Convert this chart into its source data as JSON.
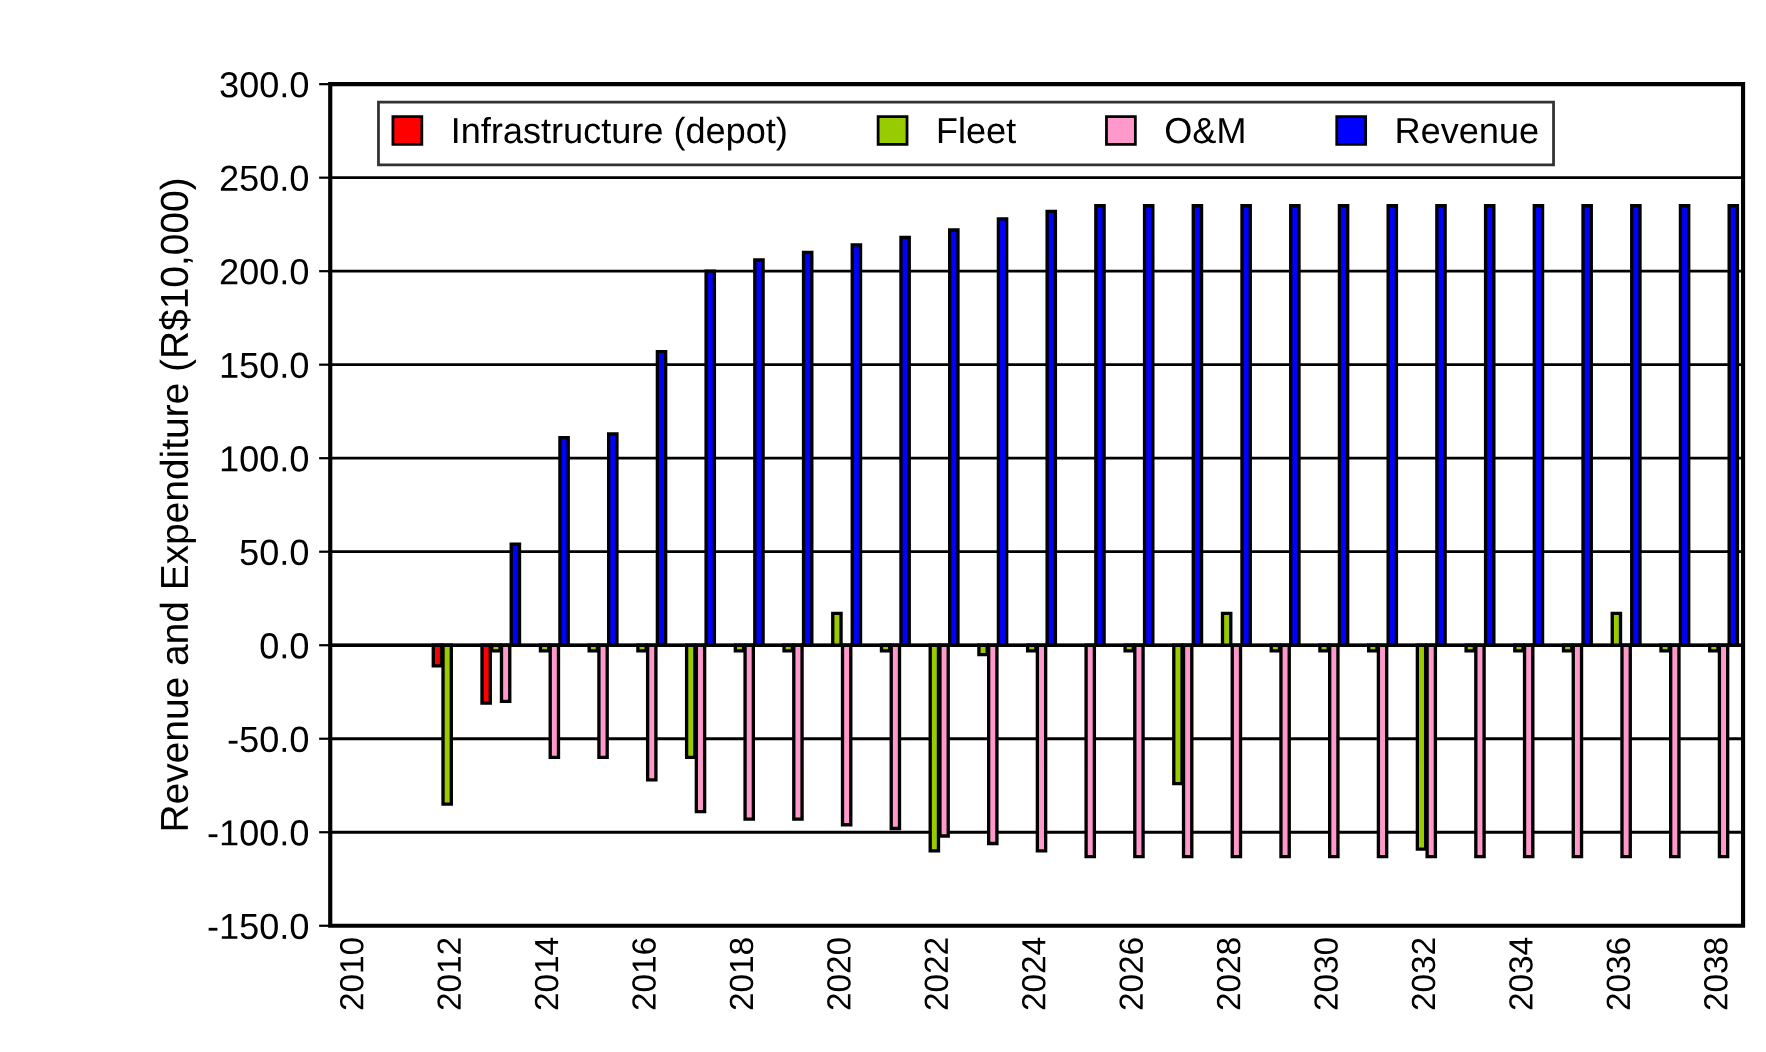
{
  "chart_data": {
    "type": "bar",
    "ylabel": "Revenue and Expenditure (R$10,000)",
    "categories": [
      "2010",
      null,
      "2012",
      null,
      "2014",
      null,
      "2016",
      null,
      "2018",
      null,
      "2020",
      null,
      "2022",
      null,
      "2024",
      null,
      "2026",
      null,
      "2028",
      null,
      "2030",
      null,
      "2032",
      null,
      "2034",
      null,
      "2036",
      null,
      "2038"
    ],
    "series": [
      {
        "name": "Infrastructure (depot)",
        "color": "#ff0000",
        "values": [
          null,
          null,
          -11,
          -31,
          null,
          null,
          null,
          null,
          null,
          null,
          null,
          null,
          null,
          null,
          null,
          null,
          null,
          null,
          null,
          null,
          null,
          null,
          null,
          null,
          null,
          null,
          null,
          null,
          null
        ]
      },
      {
        "name": "Fleet",
        "color": "#99cc00",
        "values": [
          null,
          null,
          -85,
          -3,
          -3,
          -3,
          -3,
          -60,
          -3,
          -3,
          17,
          -3,
          -110,
          -5,
          -3,
          null,
          -3,
          -74,
          17,
          -3,
          -3,
          -3,
          -109,
          -3,
          -3,
          -3,
          17,
          -3,
          -3
        ]
      },
      {
        "name": "O&M",
        "color": "#ff99cc",
        "values": [
          null,
          null,
          null,
          -30,
          -60,
          -60,
          -72,
          -89,
          -93,
          -93,
          -96,
          -98,
          -102,
          -106,
          -110,
          -113,
          -113,
          -113,
          -113,
          -113,
          -113,
          -113,
          -113,
          -113,
          -113,
          -113,
          -113,
          -113,
          -113
        ]
      },
      {
        "name": "Revenue",
        "color": "#0000ff",
        "values": [
          null,
          null,
          null,
          54,
          111,
          113,
          157,
          200,
          206,
          210,
          214,
          218,
          222,
          228,
          232,
          235,
          235,
          235,
          235,
          235,
          235,
          235,
          235,
          235,
          235,
          235,
          235,
          235,
          235
        ]
      }
    ],
    "ylim": [
      -150,
      300
    ],
    "yticks": [
      {
        "value": -150,
        "label": "-150.0"
      },
      {
        "value": -100,
        "label": "-100.0"
      },
      {
        "value": -50,
        "label": "-50.0"
      },
      {
        "value": 0,
        "label": "0.0"
      },
      {
        "value": 50,
        "label": "50.0"
      },
      {
        "value": 100,
        "label": "100.0"
      },
      {
        "value": 150,
        "label": "150.0"
      },
      {
        "value": 200,
        "label": "200.0"
      },
      {
        "value": 250,
        "label": "250.0"
      },
      {
        "value": 300,
        "label": "300.0"
      }
    ],
    "grid": "y",
    "legend": "top"
  }
}
